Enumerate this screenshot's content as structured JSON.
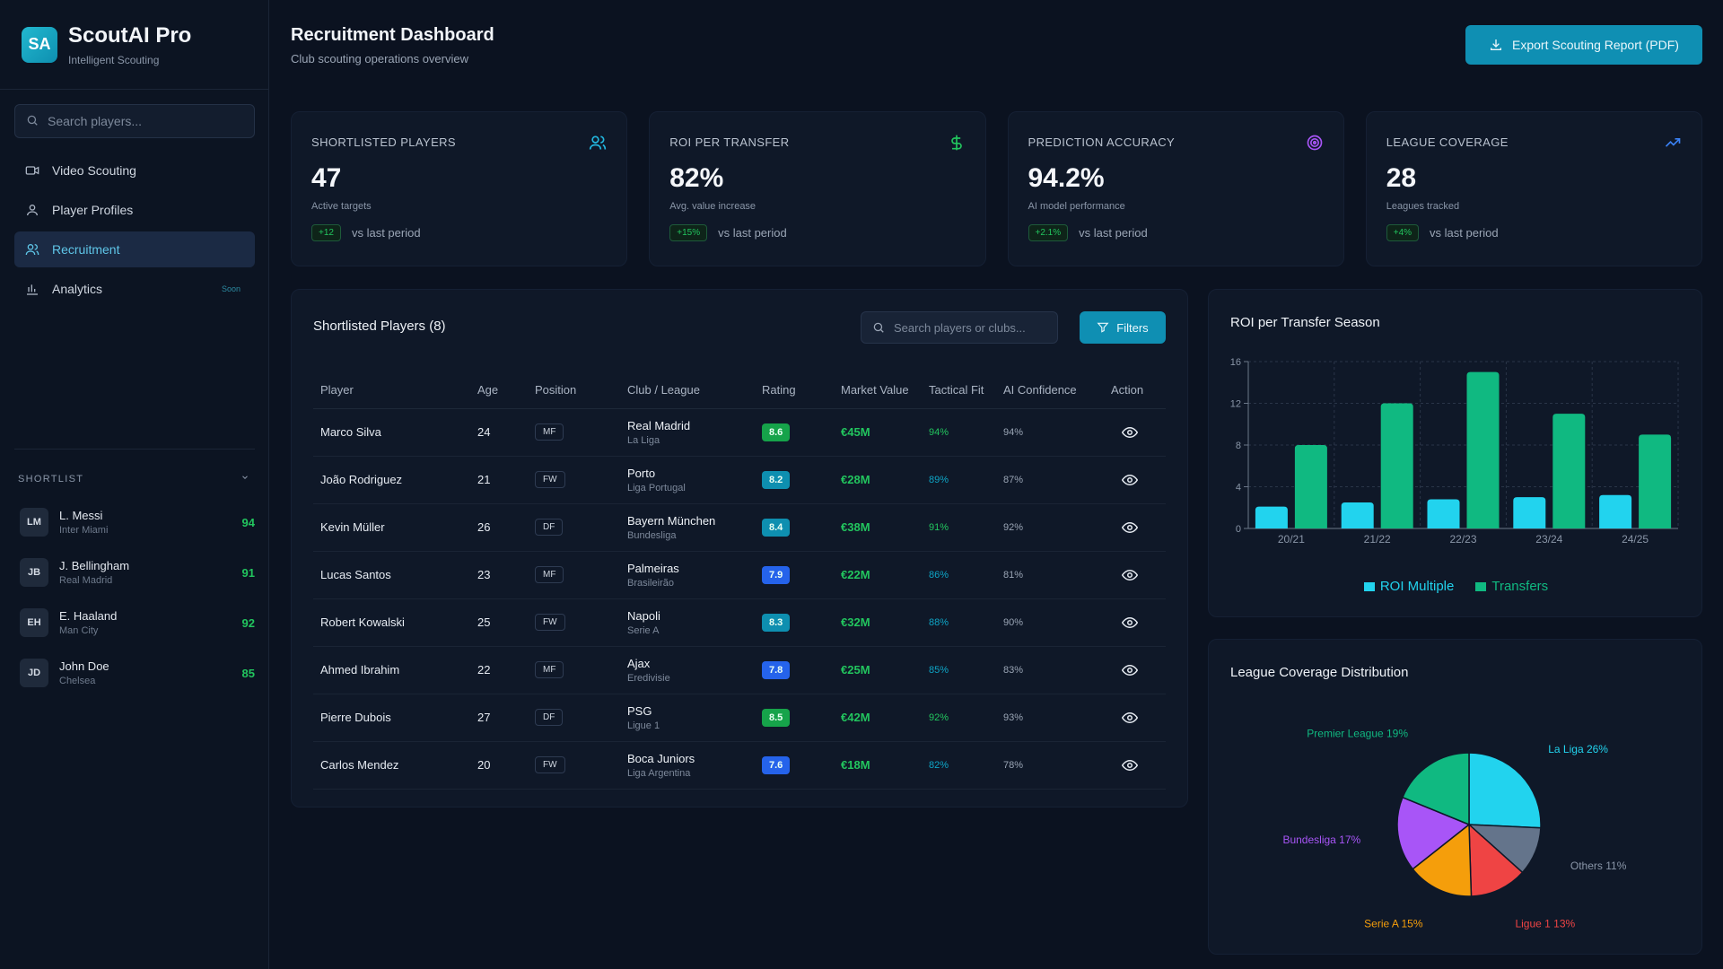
{
  "brand": {
    "logo": "SA",
    "name": "ScoutAI Pro",
    "subtitle": "Intelligent Scouting"
  },
  "sidebar": {
    "search_placeholder": "Search players...",
    "nav": [
      {
        "label": "Video Scouting",
        "icon": "video-icon",
        "active": false
      },
      {
        "label": "Player Profiles",
        "icon": "user-icon",
        "active": false
      },
      {
        "label": "Recruitment",
        "icon": "users-icon",
        "active": true
      },
      {
        "label": "Analytics",
        "icon": "bar-chart-icon",
        "active": false,
        "badge": "Soon"
      }
    ],
    "shortlist_title": "SHORTLIST",
    "shortlist": [
      {
        "initials": "LM",
        "name": "L. Messi",
        "club": "Inter Miami",
        "score": "94"
      },
      {
        "initials": "JB",
        "name": "J. Bellingham",
        "club": "Real Madrid",
        "score": "91"
      },
      {
        "initials": "EH",
        "name": "E. Haaland",
        "club": "Man City",
        "score": "92"
      },
      {
        "initials": "JD",
        "name": "John Doe",
        "club": "Chelsea",
        "score": "85"
      }
    ]
  },
  "header": {
    "title": "Recruitment Dashboard",
    "subtitle": "Club scouting operations overview",
    "export_label": "Export Scouting Report (PDF)"
  },
  "stats": [
    {
      "label": "SHORTLISTED PLAYERS",
      "value": "47",
      "desc": "Active targets",
      "delta": "+12",
      "foot": "vs last period",
      "icon": "users-icon",
      "icon_color": "#22b8e0"
    },
    {
      "label": "ROI PER TRANSFER",
      "value": "82%",
      "desc": "Avg. value increase",
      "delta": "+15%",
      "foot": "vs last period",
      "icon": "dollar-icon",
      "icon_color": "#22c55e"
    },
    {
      "label": "PREDICTION ACCURACY",
      "value": "94.2%",
      "desc": "AI model performance",
      "delta": "+2.1%",
      "foot": "vs last period",
      "icon": "target-icon",
      "icon_color": "#a855f7"
    },
    {
      "label": "LEAGUE COVERAGE",
      "value": "28",
      "desc": "Leagues tracked",
      "delta": "+4%",
      "foot": "vs last period",
      "icon": "trending-up-icon",
      "icon_color": "#3b82f6"
    }
  ],
  "table": {
    "title": "Shortlisted Players (8)",
    "search_placeholder": "Search players or clubs...",
    "filter_label": "Filters",
    "columns": [
      "Player",
      "Age",
      "Position",
      "Club / League",
      "Rating",
      "Market Value",
      "Tactical Fit",
      "AI Confidence",
      "Action"
    ],
    "rows": [
      {
        "player": "Marco Silva",
        "age": "24",
        "position": "MF",
        "club": "Real Madrid",
        "league": "La Liga",
        "rating": "8.6",
        "rating_color": "#16a34a",
        "value": "€45M",
        "fit": "94%",
        "fit_color": "#22c55e",
        "confidence": "94%"
      },
      {
        "player": "João Rodriguez",
        "age": "21",
        "position": "FW",
        "club": "Porto",
        "league": "Liga Portugal",
        "rating": "8.2",
        "rating_color": "#0e8fb0",
        "value": "€28M",
        "fit": "89%",
        "fit_color": "#0ea5c6",
        "confidence": "87%"
      },
      {
        "player": "Kevin Müller",
        "age": "26",
        "position": "DF",
        "club": "Bayern München",
        "league": "Bundesliga",
        "rating": "8.4",
        "rating_color": "#0e8fb0",
        "value": "€38M",
        "fit": "91%",
        "fit_color": "#22c55e",
        "confidence": "92%"
      },
      {
        "player": "Lucas Santos",
        "age": "23",
        "position": "MF",
        "club": "Palmeiras",
        "league": "Brasileirão",
        "rating": "7.9",
        "rating_color": "#2563eb",
        "value": "€22M",
        "fit": "86%",
        "fit_color": "#0ea5c6",
        "confidence": "81%"
      },
      {
        "player": "Robert Kowalski",
        "age": "25",
        "position": "FW",
        "club": "Napoli",
        "league": "Serie A",
        "rating": "8.3",
        "rating_color": "#0e8fb0",
        "value": "€32M",
        "fit": "88%",
        "fit_color": "#0ea5c6",
        "confidence": "90%"
      },
      {
        "player": "Ahmed Ibrahim",
        "age": "22",
        "position": "MF",
        "club": "Ajax",
        "league": "Eredivisie",
        "rating": "7.8",
        "rating_color": "#2563eb",
        "value": "€25M",
        "fit": "85%",
        "fit_color": "#0ea5c6",
        "confidence": "83%"
      },
      {
        "player": "Pierre Dubois",
        "age": "27",
        "position": "DF",
        "club": "PSG",
        "league": "Ligue 1",
        "rating": "8.5",
        "rating_color": "#16a34a",
        "value": "€42M",
        "fit": "92%",
        "fit_color": "#22c55e",
        "confidence": "93%"
      },
      {
        "player": "Carlos Mendez",
        "age": "20",
        "position": "FW",
        "club": "Boca Juniors",
        "league": "Liga Argentina",
        "rating": "7.6",
        "rating_color": "#2563eb",
        "value": "€18M",
        "fit": "82%",
        "fit_color": "#0ea5c6",
        "confidence": "78%"
      }
    ]
  },
  "charts": {
    "roi_title": "ROI per Transfer Season",
    "pie_title": "League Coverage Distribution"
  },
  "chart_data": [
    {
      "type": "bar",
      "title": "ROI per Transfer Season",
      "categories": [
        "20/21",
        "21/22",
        "22/23",
        "23/24",
        "24/25"
      ],
      "series": [
        {
          "name": "ROI Multiple",
          "values": [
            2.1,
            2.5,
            2.8,
            3.0,
            3.2
          ],
          "color": "#22d3ee"
        },
        {
          "name": "Transfers",
          "values": [
            8,
            12,
            15,
            11,
            9
          ],
          "color": "#10b981"
        }
      ],
      "ylim": [
        0,
        16
      ],
      "yticks": [
        0,
        4,
        8,
        12,
        16
      ],
      "grid": true,
      "legend": "bottom"
    },
    {
      "type": "pie",
      "title": "League Coverage Distribution",
      "slices": [
        {
          "label": "La Liga 26%",
          "value": 26,
          "color": "#22d3ee"
        },
        {
          "label": "Others 11%",
          "value": 11,
          "color": "#64748b"
        },
        {
          "label": "Ligue 1 13%",
          "value": 13,
          "color": "#ef4444"
        },
        {
          "label": "Serie A 15%",
          "value": 15,
          "color": "#f59e0b"
        },
        {
          "label": "Bundesliga 17%",
          "value": 17,
          "color": "#a855f7"
        },
        {
          "label": "Premier League 19%",
          "value": 19,
          "color": "#10b981"
        }
      ]
    }
  ]
}
